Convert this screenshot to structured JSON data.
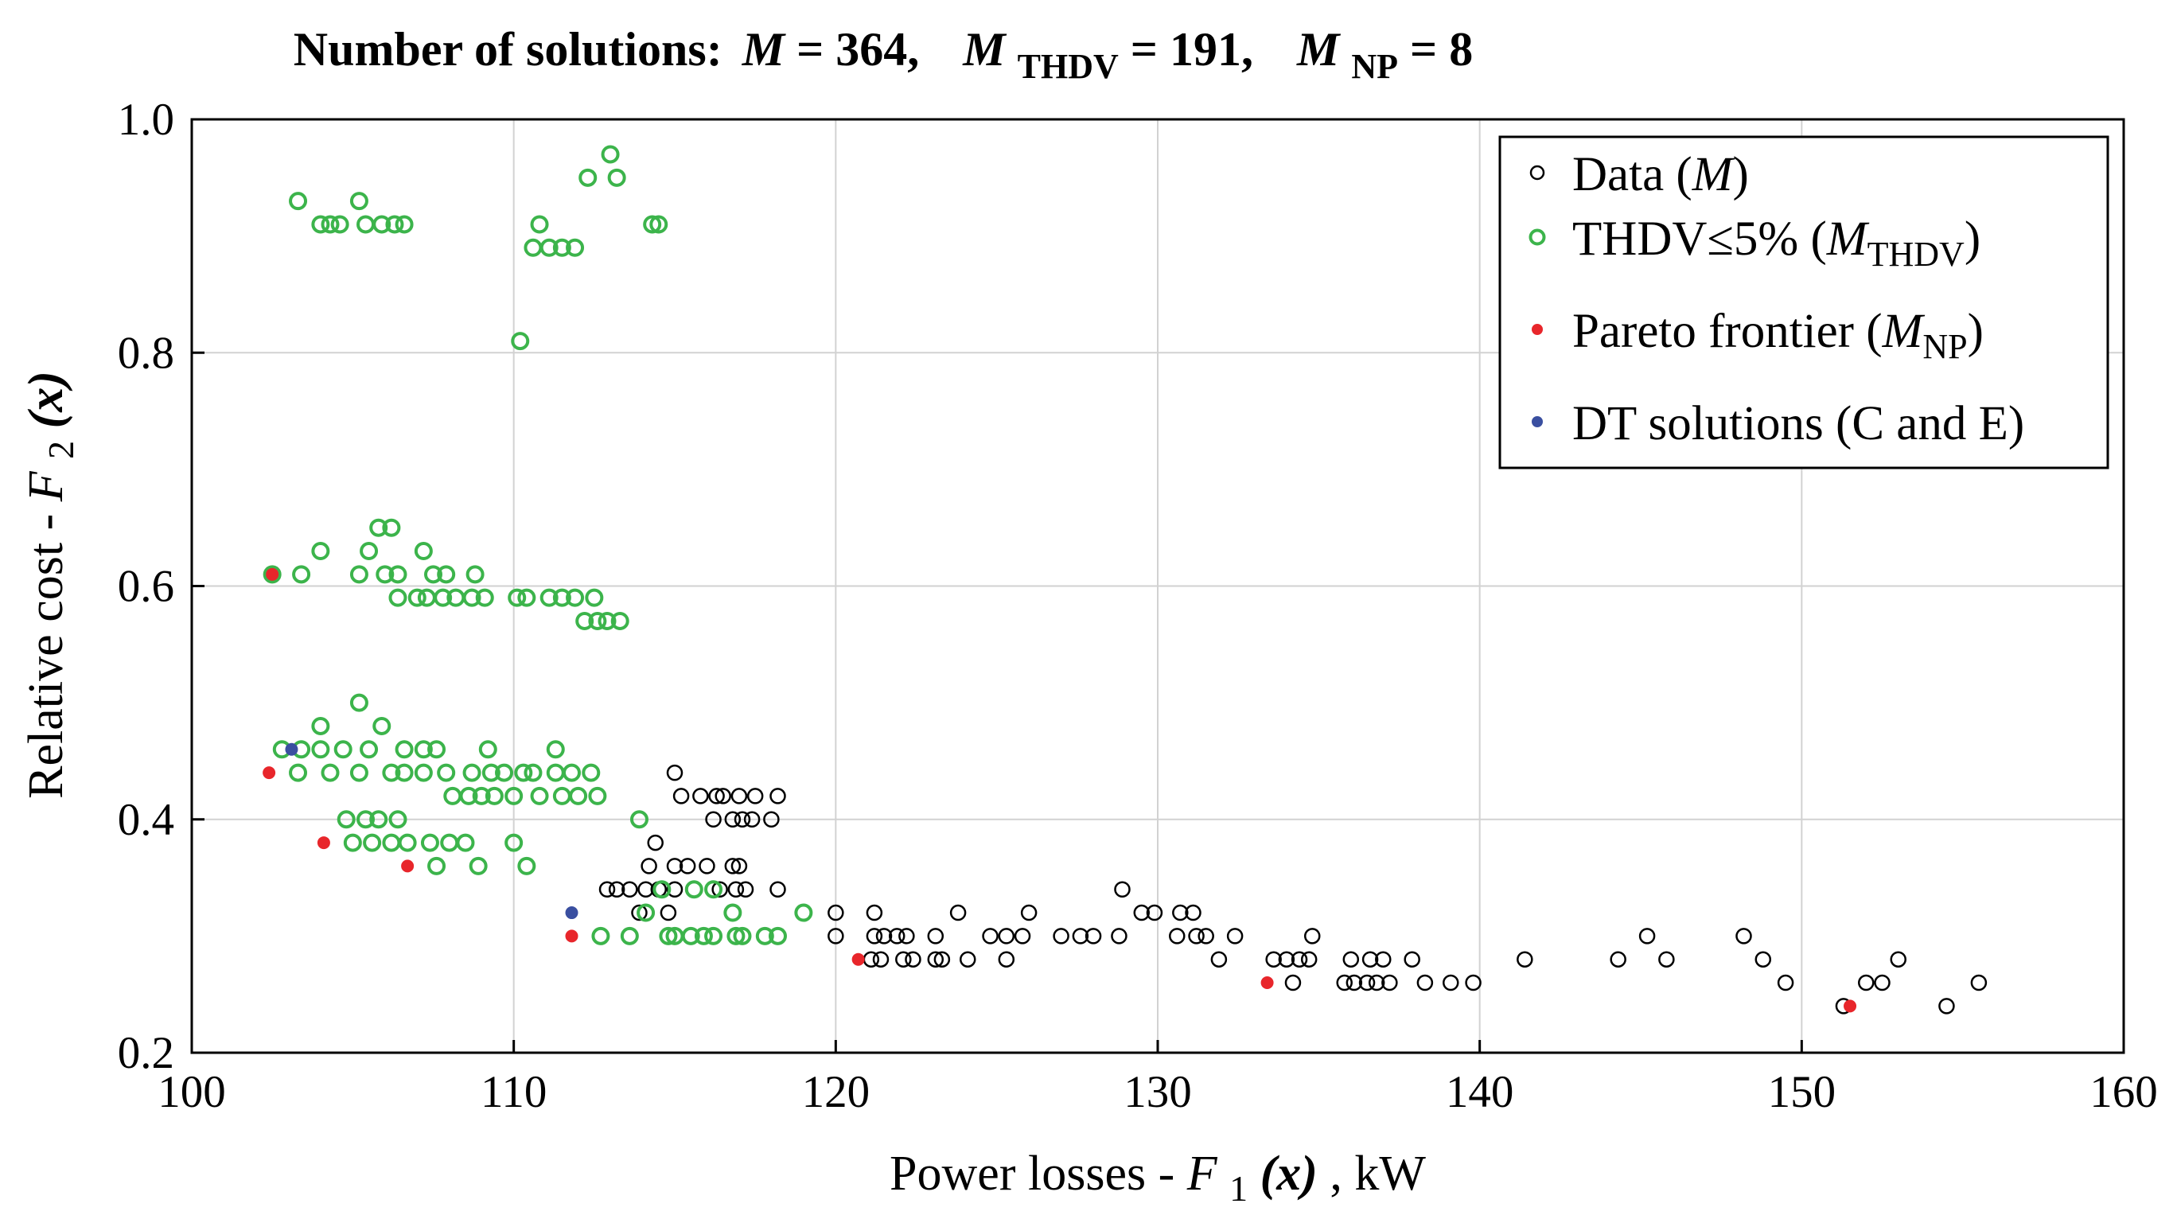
{
  "chart_data": {
    "type": "scatter",
    "title": {
      "prefix": "Number of solutions:",
      "m_sym": "M",
      "m_eq": " = 364,",
      "m_thdv_sym": "M",
      "m_thdv_sub": "THDV",
      "m_thdv_eq": " = 191,",
      "m_np_sym": "M",
      "m_np_sub": "NP",
      "m_np_eq": " = 8"
    },
    "xlabel": {
      "text": "Power losses - ",
      "sym": "F",
      "sub": "1",
      "arg": "(x)",
      "unit": ", kW"
    },
    "ylabel": {
      "text": "Relative cost - ",
      "sym": "F",
      "sub": "2",
      "arg": "(x)"
    },
    "xlim": [
      100,
      160
    ],
    "ylim": [
      0.2,
      1.0
    ],
    "xticks": [
      100,
      110,
      120,
      130,
      140,
      150,
      160
    ],
    "xtick_labels": [
      "100",
      "110",
      "120",
      "130",
      "140",
      "150",
      "160"
    ],
    "yticks": [
      0.2,
      0.4,
      0.6,
      0.8,
      1.0
    ],
    "ytick_labels": [
      "0.2",
      "0.4",
      "0.6",
      "0.8",
      "1.0"
    ],
    "grid": true,
    "legend_position": "top-right",
    "legend": [
      {
        "label": "Data (",
        "sym": "M",
        "sub": "",
        "close": ")",
        "marker": "open-circle",
        "color": "#000000"
      },
      {
        "label": "THDV≤5% (",
        "sym": "M",
        "sub": "THDV",
        "close": ")",
        "marker": "open-circle",
        "color": "#3cb44b"
      },
      {
        "label": "Pareto frontier (",
        "sym": "M",
        "sub": "NP",
        "close": ")",
        "marker": "dot",
        "color": "#e8262b"
      },
      {
        "label": "DT solutions (C and E)",
        "sym": "",
        "sub": "",
        "close": "",
        "marker": "dot",
        "color": "#3a4fa0"
      }
    ],
    "series": [
      {
        "name": "Data (M)",
        "color": "#000000",
        "marker": "open-circle",
        "points": [
          [
            115.0,
            0.44
          ],
          [
            115.2,
            0.42
          ],
          [
            115.8,
            0.42
          ],
          [
            116.3,
            0.42
          ],
          [
            116.5,
            0.42
          ],
          [
            117.0,
            0.42
          ],
          [
            117.5,
            0.42
          ],
          [
            118.2,
            0.42
          ],
          [
            116.2,
            0.4
          ],
          [
            116.8,
            0.4
          ],
          [
            117.1,
            0.4
          ],
          [
            117.4,
            0.4
          ],
          [
            118.0,
            0.4
          ],
          [
            114.4,
            0.38
          ],
          [
            114.2,
            0.36
          ],
          [
            115.0,
            0.36
          ],
          [
            115.4,
            0.36
          ],
          [
            116.0,
            0.36
          ],
          [
            116.8,
            0.36
          ],
          [
            117.0,
            0.36
          ],
          [
            112.9,
            0.34
          ],
          [
            113.2,
            0.34
          ],
          [
            113.6,
            0.34
          ],
          [
            114.1,
            0.34
          ],
          [
            114.5,
            0.34
          ],
          [
            115.0,
            0.34
          ],
          [
            115.6,
            0.34
          ],
          [
            116.4,
            0.34
          ],
          [
            116.9,
            0.34
          ],
          [
            117.2,
            0.34
          ],
          [
            118.2,
            0.34
          ],
          [
            128.9,
            0.34
          ],
          [
            113.9,
            0.32
          ],
          [
            114.8,
            0.32
          ],
          [
            120.0,
            0.32
          ],
          [
            121.2,
            0.32
          ],
          [
            123.8,
            0.32
          ],
          [
            126.0,
            0.32
          ],
          [
            129.5,
            0.32
          ],
          [
            129.9,
            0.32
          ],
          [
            130.7,
            0.32
          ],
          [
            131.1,
            0.32
          ],
          [
            120.0,
            0.3
          ],
          [
            121.2,
            0.3
          ],
          [
            121.5,
            0.3
          ],
          [
            121.9,
            0.3
          ],
          [
            122.2,
            0.3
          ],
          [
            123.1,
            0.3
          ],
          [
            124.8,
            0.3
          ],
          [
            125.3,
            0.3
          ],
          [
            125.8,
            0.3
          ],
          [
            127.0,
            0.3
          ],
          [
            127.6,
            0.3
          ],
          [
            128.0,
            0.3
          ],
          [
            128.8,
            0.3
          ],
          [
            130.6,
            0.3
          ],
          [
            131.2,
            0.3
          ],
          [
            131.5,
            0.3
          ],
          [
            132.4,
            0.3
          ],
          [
            134.8,
            0.3
          ],
          [
            145.2,
            0.3
          ],
          [
            148.2,
            0.3
          ],
          [
            121.1,
            0.28
          ],
          [
            121.4,
            0.28
          ],
          [
            122.1,
            0.28
          ],
          [
            122.4,
            0.28
          ],
          [
            123.1,
            0.28
          ],
          [
            123.3,
            0.28
          ],
          [
            124.1,
            0.28
          ],
          [
            125.3,
            0.28
          ],
          [
            131.9,
            0.28
          ],
          [
            133.6,
            0.28
          ],
          [
            134.0,
            0.28
          ],
          [
            134.4,
            0.28
          ],
          [
            134.7,
            0.28
          ],
          [
            136.0,
            0.28
          ],
          [
            136.6,
            0.28
          ],
          [
            137.0,
            0.28
          ],
          [
            137.9,
            0.28
          ],
          [
            141.4,
            0.28
          ],
          [
            144.3,
            0.28
          ],
          [
            145.8,
            0.28
          ],
          [
            148.8,
            0.28
          ],
          [
            153.0,
            0.28
          ],
          [
            134.2,
            0.26
          ],
          [
            135.8,
            0.26
          ],
          [
            136.1,
            0.26
          ],
          [
            136.5,
            0.26
          ],
          [
            136.8,
            0.26
          ],
          [
            137.2,
            0.26
          ],
          [
            138.3,
            0.26
          ],
          [
            139.1,
            0.26
          ],
          [
            139.8,
            0.26
          ],
          [
            149.5,
            0.26
          ],
          [
            152.0,
            0.26
          ],
          [
            152.5,
            0.26
          ],
          [
            155.5,
            0.26
          ],
          [
            151.3,
            0.24
          ],
          [
            154.5,
            0.24
          ]
        ]
      },
      {
        "name": "THDV≤5% (M_THDV)",
        "color": "#3cb44b",
        "marker": "open-circle",
        "points": [
          [
            113.0,
            0.97
          ],
          [
            112.3,
            0.95
          ],
          [
            113.2,
            0.95
          ],
          [
            103.3,
            0.93
          ],
          [
            105.2,
            0.93
          ],
          [
            104.0,
            0.91
          ],
          [
            104.3,
            0.91
          ],
          [
            104.6,
            0.91
          ],
          [
            105.4,
            0.91
          ],
          [
            105.9,
            0.91
          ],
          [
            106.3,
            0.91
          ],
          [
            106.6,
            0.91
          ],
          [
            110.8,
            0.91
          ],
          [
            114.3,
            0.91
          ],
          [
            114.5,
            0.91
          ],
          [
            110.6,
            0.89
          ],
          [
            111.1,
            0.89
          ],
          [
            111.5,
            0.89
          ],
          [
            111.9,
            0.89
          ],
          [
            110.2,
            0.81
          ],
          [
            105.8,
            0.65
          ],
          [
            106.2,
            0.65
          ],
          [
            104.0,
            0.63
          ],
          [
            105.5,
            0.63
          ],
          [
            107.2,
            0.63
          ],
          [
            102.5,
            0.61
          ],
          [
            103.4,
            0.61
          ],
          [
            105.2,
            0.61
          ],
          [
            106.0,
            0.61
          ],
          [
            106.4,
            0.61
          ],
          [
            107.5,
            0.61
          ],
          [
            107.9,
            0.61
          ],
          [
            108.8,
            0.61
          ],
          [
            106.4,
            0.59
          ],
          [
            107.0,
            0.59
          ],
          [
            107.3,
            0.59
          ],
          [
            107.8,
            0.59
          ],
          [
            108.2,
            0.59
          ],
          [
            108.7,
            0.59
          ],
          [
            109.1,
            0.59
          ],
          [
            110.1,
            0.59
          ],
          [
            110.4,
            0.59
          ],
          [
            111.1,
            0.59
          ],
          [
            111.5,
            0.59
          ],
          [
            111.9,
            0.59
          ],
          [
            112.5,
            0.59
          ],
          [
            112.2,
            0.57
          ],
          [
            112.6,
            0.57
          ],
          [
            112.9,
            0.57
          ],
          [
            113.3,
            0.57
          ],
          [
            105.2,
            0.5
          ],
          [
            105.9,
            0.48
          ],
          [
            104.0,
            0.48
          ],
          [
            102.8,
            0.46
          ],
          [
            103.4,
            0.46
          ],
          [
            104.0,
            0.46
          ],
          [
            104.7,
            0.46
          ],
          [
            105.5,
            0.46
          ],
          [
            106.6,
            0.46
          ],
          [
            107.2,
            0.46
          ],
          [
            107.6,
            0.46
          ],
          [
            109.2,
            0.46
          ],
          [
            111.3,
            0.46
          ],
          [
            103.3,
            0.44
          ],
          [
            104.3,
            0.44
          ],
          [
            105.2,
            0.44
          ],
          [
            106.2,
            0.44
          ],
          [
            106.6,
            0.44
          ],
          [
            107.2,
            0.44
          ],
          [
            107.9,
            0.44
          ],
          [
            108.7,
            0.44
          ],
          [
            109.3,
            0.44
          ],
          [
            109.7,
            0.44
          ],
          [
            110.3,
            0.44
          ],
          [
            110.6,
            0.44
          ],
          [
            111.3,
            0.44
          ],
          [
            111.8,
            0.44
          ],
          [
            112.4,
            0.44
          ],
          [
            108.1,
            0.42
          ],
          [
            108.6,
            0.42
          ],
          [
            109.0,
            0.42
          ],
          [
            109.4,
            0.42
          ],
          [
            110.0,
            0.42
          ],
          [
            110.8,
            0.42
          ],
          [
            111.5,
            0.42
          ],
          [
            112.0,
            0.42
          ],
          [
            112.6,
            0.42
          ],
          [
            113.9,
            0.4
          ],
          [
            104.8,
            0.4
          ],
          [
            105.4,
            0.4
          ],
          [
            105.8,
            0.4
          ],
          [
            106.4,
            0.4
          ],
          [
            105.0,
            0.38
          ],
          [
            105.6,
            0.38
          ],
          [
            106.2,
            0.38
          ],
          [
            106.7,
            0.38
          ],
          [
            107.4,
            0.38
          ],
          [
            108.0,
            0.38
          ],
          [
            108.5,
            0.38
          ],
          [
            110.0,
            0.38
          ],
          [
            107.6,
            0.36
          ],
          [
            108.9,
            0.36
          ],
          [
            110.4,
            0.36
          ],
          [
            114.6,
            0.34
          ],
          [
            115.6,
            0.34
          ],
          [
            116.2,
            0.34
          ],
          [
            114.1,
            0.32
          ],
          [
            116.8,
            0.32
          ],
          [
            119.0,
            0.32
          ],
          [
            112.7,
            0.3
          ],
          [
            113.6,
            0.3
          ],
          [
            114.8,
            0.3
          ],
          [
            115.0,
            0.3
          ],
          [
            115.5,
            0.3
          ],
          [
            115.9,
            0.3
          ],
          [
            116.2,
            0.3
          ],
          [
            116.9,
            0.3
          ],
          [
            117.1,
            0.3
          ],
          [
            117.8,
            0.3
          ],
          [
            118.2,
            0.3
          ]
        ]
      },
      {
        "name": "Pareto frontier (M_NP)",
        "color": "#e8262b",
        "marker": "dot",
        "points": [
          [
            102.5,
            0.61
          ],
          [
            102.4,
            0.44
          ],
          [
            104.1,
            0.38
          ],
          [
            106.7,
            0.36
          ],
          [
            111.8,
            0.3
          ],
          [
            120.7,
            0.28
          ],
          [
            133.4,
            0.26
          ],
          [
            151.5,
            0.24
          ]
        ]
      },
      {
        "name": "DT solutions (C and E)",
        "color": "#3a4fa0",
        "marker": "dot",
        "points": [
          [
            103.1,
            0.46
          ],
          [
            111.8,
            0.32
          ]
        ]
      }
    ]
  }
}
